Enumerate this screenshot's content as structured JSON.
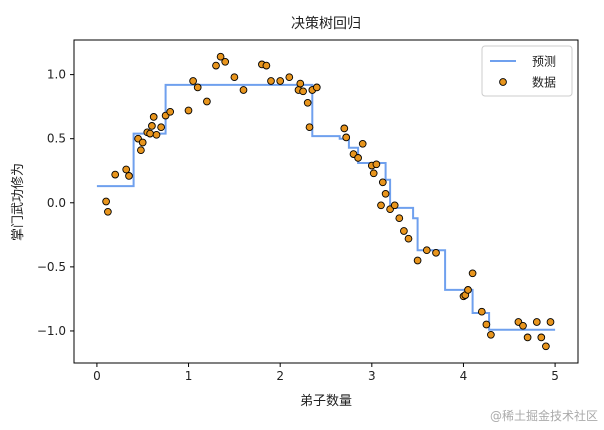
{
  "chart_data": {
    "type": "line",
    "title": "决策树回归",
    "xlabel": "弟子数量",
    "ylabel": "掌门武功修为",
    "xlim": [
      -0.25,
      5.25
    ],
    "ylim": [
      -1.25,
      1.27
    ],
    "xticks": [
      0,
      1,
      2,
      3,
      4,
      5
    ],
    "xtick_labels": [
      "0",
      "1",
      "2",
      "3",
      "4",
      "5"
    ],
    "yticks": [
      -1.0,
      -0.5,
      0.0,
      0.5,
      1.0
    ],
    "ytick_labels": [
      "−1.0",
      "−0.5",
      "0.0",
      "0.5",
      "1.0"
    ],
    "legend_position": "top-right",
    "legend": [
      {
        "label": "预测",
        "kind": "line",
        "color": "#6fa0ee"
      },
      {
        "label": "数据",
        "kind": "marker",
        "color": "#e8951d"
      }
    ],
    "series": [
      {
        "name": "预测",
        "kind": "step",
        "color": "#6fa0ee",
        "x": [
          0.0,
          0.4,
          0.4,
          0.75,
          0.75,
          2.3,
          2.3,
          2.35,
          2.35,
          2.65,
          2.65,
          2.75,
          2.75,
          2.85,
          2.85,
          3.15,
          3.15,
          3.2,
          3.2,
          3.45,
          3.45,
          3.5,
          3.5,
          3.8,
          3.8,
          4.1,
          4.1,
          4.28,
          4.28,
          5.0
        ],
        "y": [
          0.13,
          0.13,
          0.54,
          0.54,
          0.92,
          0.92,
          0.92,
          0.92,
          0.52,
          0.52,
          0.5,
          0.5,
          0.43,
          0.43,
          0.31,
          0.31,
          0.18,
          0.18,
          -0.04,
          -0.04,
          -0.12,
          -0.12,
          -0.37,
          -0.37,
          -0.68,
          -0.68,
          -0.86,
          -0.86,
          -0.99,
          -0.99
        ]
      },
      {
        "name": "数据",
        "kind": "scatter",
        "color": "#e8951d",
        "edge_color": "#000000",
        "x": [
          0.1,
          0.12,
          0.2,
          0.32,
          0.35,
          0.45,
          0.48,
          0.5,
          0.55,
          0.58,
          0.6,
          0.62,
          0.65,
          0.7,
          0.75,
          0.8,
          1.0,
          1.05,
          1.1,
          1.2,
          1.3,
          1.35,
          1.4,
          1.5,
          1.6,
          1.8,
          1.85,
          1.9,
          2.0,
          2.1,
          2.2,
          2.22,
          2.25,
          2.3,
          2.32,
          2.35,
          2.4,
          2.7,
          2.72,
          2.8,
          2.85,
          2.9,
          3.0,
          3.02,
          3.05,
          3.1,
          3.12,
          3.15,
          3.2,
          3.25,
          3.3,
          3.35,
          3.4,
          3.5,
          3.6,
          3.7,
          4.0,
          4.02,
          4.05,
          4.1,
          4.2,
          4.25,
          4.3,
          4.6,
          4.65,
          4.7,
          4.8,
          4.85,
          4.9,
          4.95
        ],
        "y": [
          0.01,
          -0.07,
          0.22,
          0.26,
          0.21,
          0.5,
          0.41,
          0.47,
          0.55,
          0.54,
          0.6,
          0.67,
          0.53,
          0.59,
          0.68,
          0.71,
          0.72,
          0.95,
          0.9,
          0.79,
          1.07,
          1.14,
          1.1,
          0.98,
          0.88,
          1.08,
          1.07,
          0.95,
          0.95,
          0.98,
          0.88,
          0.93,
          0.87,
          0.78,
          0.59,
          0.88,
          0.9,
          0.58,
          0.51,
          0.38,
          0.35,
          0.46,
          0.29,
          0.23,
          0.3,
          -0.02,
          0.16,
          0.07,
          -0.05,
          -0.02,
          -0.12,
          -0.22,
          -0.28,
          -0.45,
          -0.37,
          -0.39,
          -0.73,
          -0.72,
          -0.68,
          -0.55,
          -0.85,
          -0.95,
          -1.03,
          -0.93,
          -0.96,
          -1.05,
          -0.93,
          -1.05,
          -1.12,
          -0.93
        ]
      }
    ]
  },
  "watermark": "@稀土掘金技术社区"
}
